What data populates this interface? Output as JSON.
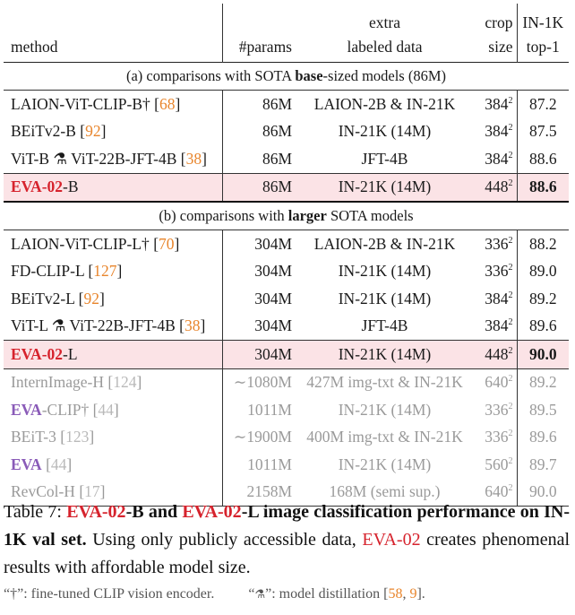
{
  "header": {
    "method": "method",
    "params": "#params",
    "data_line1": "extra",
    "data_line2": "labeled data",
    "crop_line1": "crop",
    "crop_line2": "size",
    "top1_line1": "IN-1K",
    "top1_line2": "top-1"
  },
  "sections": [
    {
      "pre": "(a) comparisons with SOTA ",
      "bold": "base",
      "post": "-sized models (86M)"
    },
    {
      "pre": "(b) comparisons with ",
      "bold": "larger",
      "post": " SOTA models"
    }
  ],
  "rows_base": [
    {
      "name": "LAION-ViT-CLIP-B†",
      "cite": "68",
      "params": "86M",
      "data": "LAION-2B & IN-21K",
      "crop": "384",
      "top1": "87.2"
    },
    {
      "name": "BEiTv2-B",
      "cite": "92",
      "params": "86M",
      "data": "IN-21K (14M)",
      "crop": "384",
      "top1": "87.5"
    },
    {
      "name": "ViT-B ⚗ ViT-22B-JFT-4B",
      "cite": "38",
      "params": "86M",
      "data": "JFT-4B",
      "crop": "384",
      "top1": "88.6"
    },
    {
      "name_red": "EVA-02",
      "name_rest": "-B",
      "params": "86M",
      "data": "IN-21K (14M)",
      "crop": "448",
      "top1": "88.6"
    }
  ],
  "rows_large": [
    {
      "name": "LAION-ViT-CLIP-L†",
      "cite": "70",
      "params": "304M",
      "data": "LAION-2B & IN-21K",
      "crop": "336",
      "top1": "88.2"
    },
    {
      "name": "FD-CLIP-L",
      "cite": "127",
      "params": "304M",
      "data": "IN-21K (14M)",
      "crop": "336",
      "top1": "89.0"
    },
    {
      "name": "BEiTv2-L",
      "cite": "92",
      "params": "304M",
      "data": "IN-21K (14M)",
      "crop": "384",
      "top1": "89.2"
    },
    {
      "name": "ViT-L ⚗ ViT-22B-JFT-4B",
      "cite": "38",
      "params": "304M",
      "data": "JFT-4B",
      "crop": "384",
      "top1": "89.6"
    },
    {
      "name_red": "EVA-02",
      "name_rest": "-L",
      "params": "304M",
      "data": "IN-21K (14M)",
      "crop": "448",
      "top1": "90.0"
    }
  ],
  "rows_grey": [
    {
      "name": "InternImage-H",
      "cite": "124",
      "params": "∼1080M",
      "data": "427M img-txt & IN-21K",
      "crop": "640",
      "top1": "89.2"
    },
    {
      "name_purple": "EVA",
      "name_rest": "-CLIP†",
      "cite": "44",
      "params": "1011M",
      "data": "IN-21K (14M)",
      "crop": "336",
      "top1": "89.5"
    },
    {
      "name": "BEiT-3",
      "cite": "123",
      "params": "∼1900M",
      "data": "400M img-txt & IN-21K",
      "crop": "336",
      "top1": "89.6"
    },
    {
      "name_purple": "EVA",
      "name_rest": "",
      "cite": "44",
      "params": "1011M",
      "data": "IN-21K (14M)",
      "crop": "560",
      "top1": "89.7"
    },
    {
      "name": "RevCol-H",
      "cite": "17",
      "params": "2158M",
      "data": "168M (semi sup.)",
      "crop": "640",
      "top1": "90.0"
    }
  ],
  "superscript": "2",
  "caption": {
    "label": "Table 7: ",
    "t1_red": "EVA-02",
    "t1": "-B and ",
    "t2_red": "EVA-02",
    "t2": "-L image classification performance on IN-1K val set.",
    "body1": " Using only publicly accessible data, ",
    "body_red": "EVA-02",
    "body2": " creates phenomenal results with affordable model size."
  },
  "footnote": {
    "dagger_sym": "“†”",
    "dagger_text": ": fine-tuned CLIP vision encoder.",
    "flask_open": "“",
    "flask_sym": "⚗",
    "flask_close": "”",
    "flask_text": ": model distillation [",
    "cite1": "58",
    "comma": ", ",
    "cite2": "9",
    "end": "]."
  },
  "colors": {
    "red": "#d6232d",
    "purple": "#8a5bb8",
    "cite": "#e8852c",
    "highlight": "#fbe3e6",
    "grey": "#9a9a9a"
  }
}
